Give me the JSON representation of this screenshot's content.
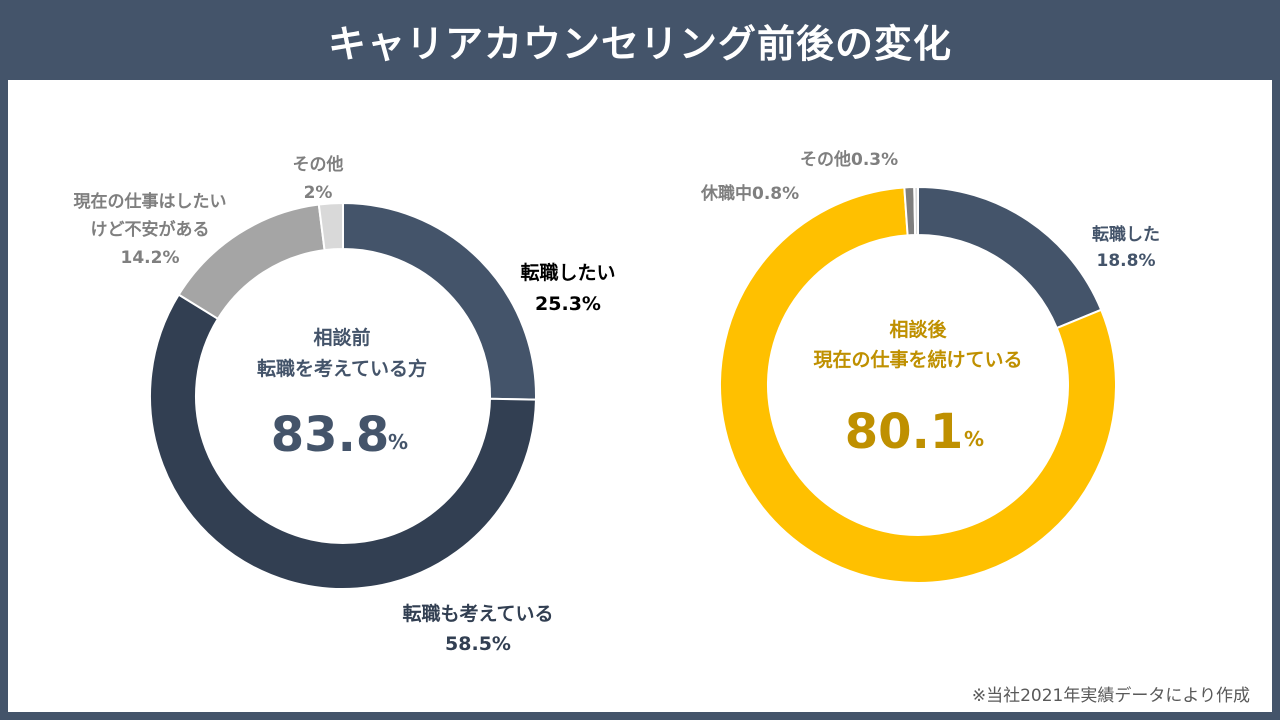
{
  "page": {
    "title": "キャリアカウンセリング前後の変化",
    "footnote": "※当社2021年実績データにより作成"
  },
  "colors": {
    "header_bg": "#44546a",
    "dark_navy": "#323f52",
    "slate": "#44546a",
    "mid_gray": "#a5a5a5",
    "light_gray": "#d9d9d9",
    "gold": "#ffc000",
    "gold_text": "#bf9000",
    "label_gray": "#7f7f7f"
  },
  "chart_data": [
    {
      "type": "pie",
      "variant": "donut",
      "center": {
        "title_line1": "相談前",
        "title_line2": "転職を考えている方",
        "value": "83.8",
        "unit": "%"
      },
      "slices": [
        {
          "label": "転職したい",
          "value": 25.3,
          "value_text": "25.3%",
          "color": "#44546a",
          "label_color": "#000000"
        },
        {
          "label": "転職も考えている",
          "value": 58.5,
          "value_text": "58.5%",
          "color": "#323f52",
          "label_color": "#323f52"
        },
        {
          "label": "現在の仕事はしたい\nけど不安がある",
          "label_line1": "現在の仕事はしたい",
          "label_line2": "けど不安がある",
          "value": 14.2,
          "value_text": "14.2%",
          "color": "#a5a5a5",
          "label_color": "#7f7f7f"
        },
        {
          "label": "その他",
          "value": 2,
          "value_text": "2%",
          "color": "#d9d9d9",
          "label_color": "#7f7f7f"
        }
      ]
    },
    {
      "type": "pie",
      "variant": "donut",
      "center": {
        "title_line1": "相談後",
        "title_line2": "現在の仕事を続けている",
        "value": "80.1",
        "unit": "%"
      },
      "slices": [
        {
          "label": "転職した",
          "value": 18.8,
          "value_text": "18.8%",
          "color": "#44546a",
          "label_color": "#44546a"
        },
        {
          "label": "現在の仕事を続けている",
          "value": 80.1,
          "value_text": "80.1%",
          "color": "#ffc000",
          "label_color": "#bf9000"
        },
        {
          "label": "休職中",
          "value": 0.8,
          "value_text": "0.8%",
          "color": "#7f7f7f",
          "label_color": "#7f7f7f"
        },
        {
          "label": "その他",
          "value": 0.3,
          "value_text": "0.3%",
          "color": "#d9d9d9",
          "label_color": "#7f7f7f"
        }
      ]
    }
  ]
}
